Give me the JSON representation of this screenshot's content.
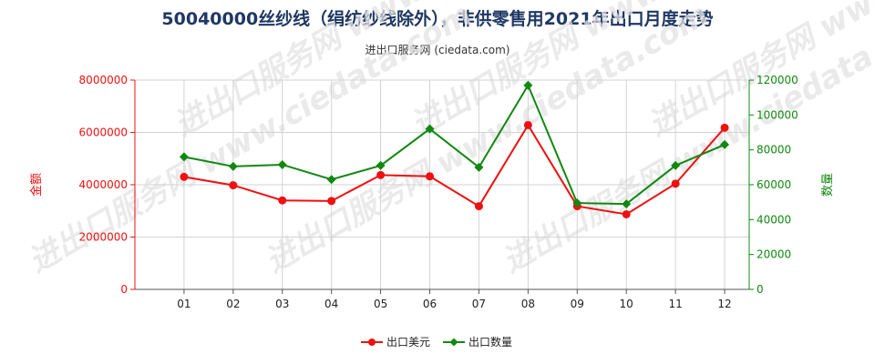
{
  "title": "50040000丝纱线（绢纺纱线除外），非供零售用2021年出口月度走势",
  "subtitle": "进出口服务网 (ciedata.com)",
  "watermark": "进出口服务网 www.ciedata.com",
  "colors": {
    "usd": "#ee1111",
    "qty": "#118811",
    "title": "#1f3864",
    "grid": "#d3d3d3"
  },
  "chart_data": {
    "type": "line",
    "categories": [
      "01",
      "02",
      "03",
      "04",
      "05",
      "06",
      "07",
      "08",
      "09",
      "10",
      "11",
      "12"
    ],
    "grid": true,
    "legend_position": "bottom-center",
    "y_left": {
      "label": "金额",
      "ylim": [
        0,
        8000000
      ],
      "ticks": [
        "0",
        "2000000",
        "4000000",
        "6000000",
        "8000000"
      ]
    },
    "y_right": {
      "label": "数量",
      "ylim": [
        0,
        120000
      ],
      "ticks": [
        "0",
        "20000",
        "40000",
        "60000",
        "80000",
        "100000",
        "120000"
      ]
    },
    "series": [
      {
        "name": "出口美元",
        "axis": "left",
        "marker": "circle",
        "values": [
          4300000,
          3980000,
          3400000,
          3380000,
          4370000,
          4320000,
          3180000,
          6280000,
          3180000,
          2870000,
          4040000,
          6180000
        ]
      },
      {
        "name": "出口数量",
        "axis": "right",
        "marker": "diamond",
        "values": [
          76000,
          70500,
          71500,
          63000,
          71000,
          92000,
          70000,
          117000,
          49500,
          49000,
          71000,
          83000
        ]
      }
    ]
  }
}
